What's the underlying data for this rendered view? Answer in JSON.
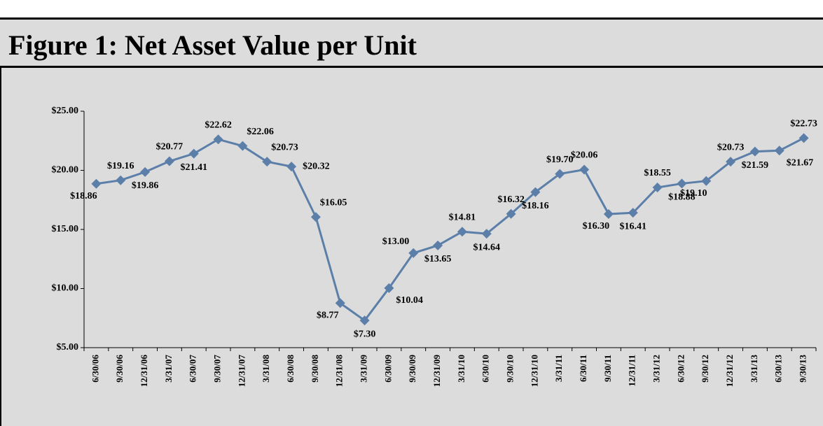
{
  "chart_data": {
    "type": "line",
    "title": "Figure 1: Net Asset Value per Unit",
    "categories": [
      "6/30/06",
      "9/30/06",
      "12/31/06",
      "3/31/07",
      "6/30/07",
      "9/30/07",
      "12/31/07",
      "3/31/08",
      "6/30/08",
      "9/30/08",
      "12/31/08",
      "3/31/09",
      "6/30/09",
      "9/30/09",
      "12/31/09",
      "3/31/10",
      "6/30/10",
      "9/30/10",
      "12/31/10",
      "3/31/11",
      "6/30/11",
      "9/30/11",
      "12/31/11",
      "3/31/12",
      "6/30/12",
      "9/30/12",
      "12/31/12",
      "3/31/13",
      "6/30/13",
      "9/30/13"
    ],
    "values": [
      18.86,
      19.16,
      19.86,
      20.77,
      21.41,
      22.62,
      22.06,
      20.73,
      20.32,
      16.05,
      8.77,
      7.3,
      10.04,
      13.0,
      13.65,
      14.81,
      14.64,
      16.32,
      18.16,
      19.7,
      20.06,
      16.3,
      16.41,
      18.55,
      18.88,
      19.1,
      20.73,
      21.59,
      21.67,
      22.73
    ],
    "value_labels": [
      "$18.86",
      "$19.16",
      "$19.86",
      "$20.77",
      "$21.41",
      "$22.62",
      "$22.06",
      "$20.73",
      "$20.32",
      "$16.05",
      "$8.77",
      "$7.30",
      "$10.04",
      "$13.00",
      "$13.65",
      "$14.81",
      "$14.64",
      "$16.32",
      "$18.16",
      "$19.70",
      "$20.06",
      "$16.30",
      "$16.41",
      "$18.55",
      "$18.88",
      "$19.10",
      "$20.73",
      "$21.59",
      "$21.67",
      "$22.73"
    ],
    "color": "#5b7fa8",
    "ylim": [
      5,
      25
    ],
    "yticks": [
      {
        "value": 5,
        "label": "$5.00"
      },
      {
        "value": 10,
        "label": "$10.00"
      },
      {
        "value": 15,
        "label": "$15.00"
      },
      {
        "value": 20,
        "label": "$20.00"
      },
      {
        "value": 25,
        "label": "$25.00"
      }
    ],
    "grid": false
  }
}
